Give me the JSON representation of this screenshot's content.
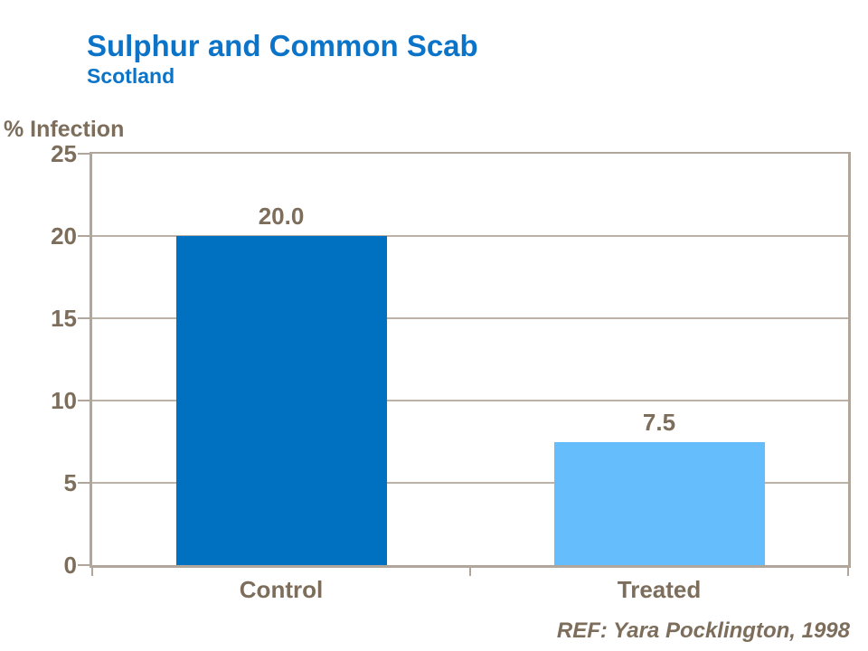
{
  "header": {
    "title": "Sulphur and Common Scab",
    "subtitle": "Scotland",
    "title_color": "#0c74c8"
  },
  "footer": {
    "reference": "REF: Yara Pocklington, 1998"
  },
  "chart_data": {
    "type": "bar",
    "title": "Sulphur and Common Scab",
    "subtitle": "Scotland",
    "ylabel": "% Infection",
    "xlabel": "",
    "categories": [
      "Control",
      "Treated"
    ],
    "values": [
      20.0,
      7.5
    ],
    "data_labels": [
      "20.0",
      "7.5"
    ],
    "bar_colors": [
      "#0070c0",
      "#66bdfb"
    ],
    "yticks": [
      0,
      5,
      10,
      15,
      20,
      25
    ],
    "ylim": [
      0,
      25
    ],
    "grid": true,
    "legend": "none",
    "axis_color": "#b1a69b",
    "gridline_color": "#bcb2a8",
    "text_color": "#7d6d5b"
  }
}
